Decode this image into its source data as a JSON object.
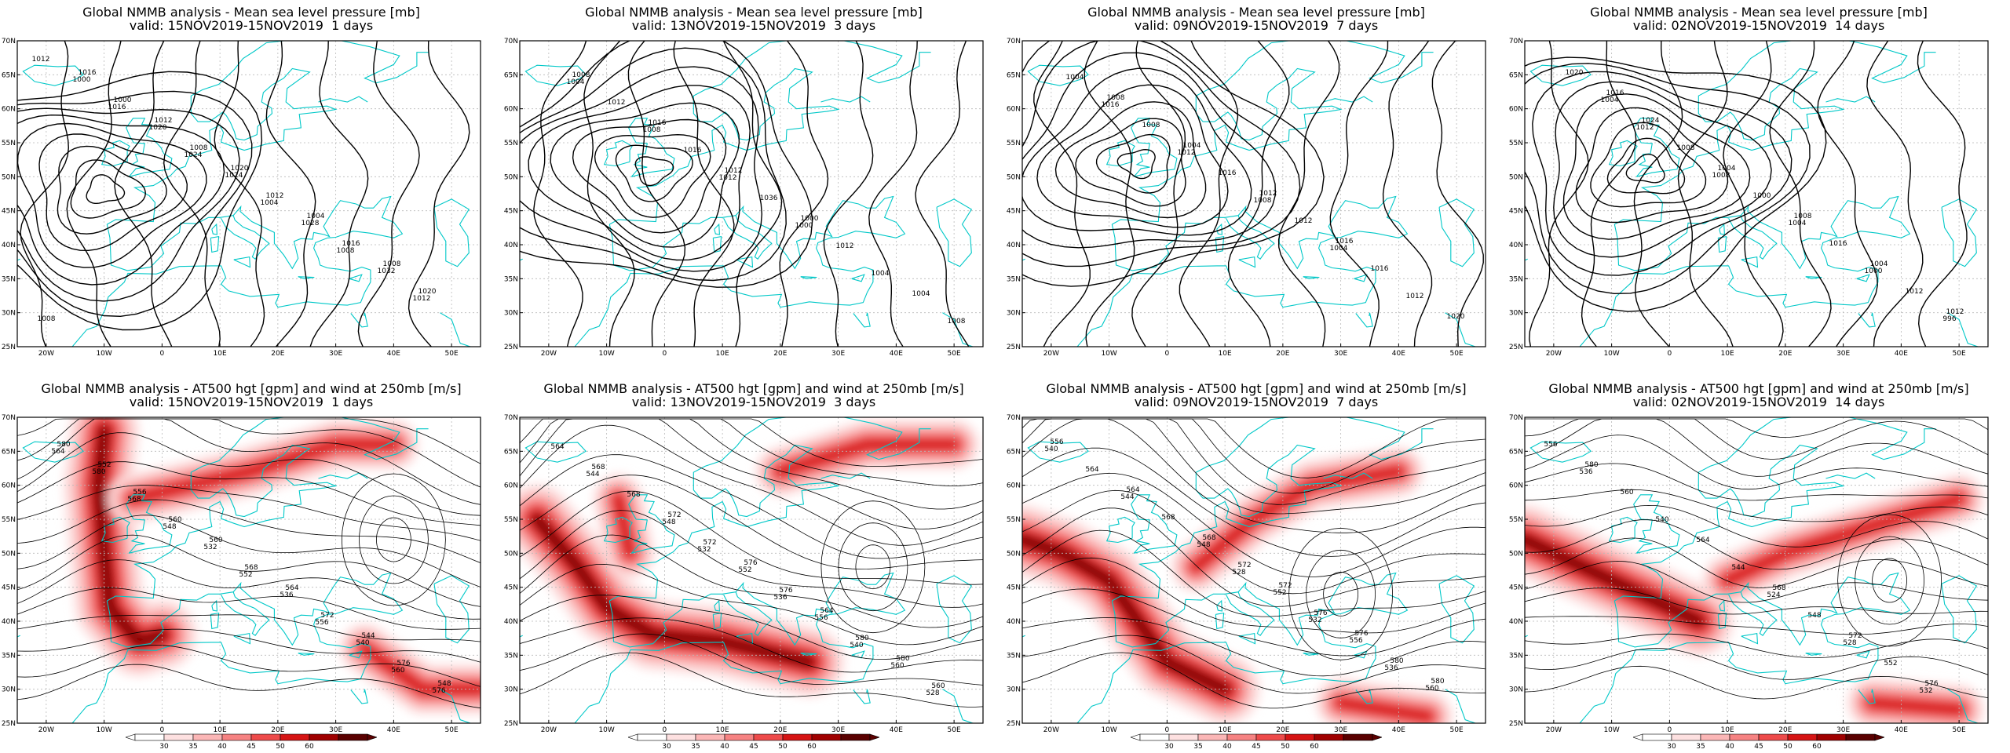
{
  "panels": [
    {
      "row": "mslp",
      "title1": "Global NMMB analysis - Mean sea level pressure [mb]",
      "title2": "valid: 15NOV2019-15NOV2019  1 days",
      "contour_labels": [
        "1012",
        "1016",
        "1024",
        "1004",
        "1008",
        "1012",
        "1000",
        "1020",
        "1024",
        "1028",
        "1032",
        "1008",
        "1000",
        "1008",
        "1012",
        "1016",
        "1020",
        "1016",
        "1012",
        "1020",
        "1004",
        "1008"
      ]
    },
    {
      "row": "mslp",
      "title1": "Global NMMB analysis - Mean sea level pressure [mb]",
      "title2": "valid: 13NOV2019-15NOV2019  3 days",
      "contour_labels": [
        "1004",
        "1008",
        "1012",
        "1000",
        "1004",
        "1008",
        "1012",
        "1016",
        "1036",
        "1012",
        "1004",
        "1008",
        "1016",
        "1012",
        "1000"
      ]
    },
    {
      "row": "mslp",
      "title1": "Global NMMB analysis - Mean sea level pressure [mb]",
      "title2": "valid: 09NOV2019-15NOV2019  7 days",
      "contour_labels": [
        "1016",
        "1012",
        "1008",
        "1004",
        "1012",
        "1004",
        "1008",
        "1016",
        "1012",
        "1016",
        "1020",
        "1008",
        "1004",
        "1012",
        "1016"
      ]
    },
    {
      "row": "mslp",
      "title1": "Global NMMB analysis - Mean sea level pressure [mb]",
      "title2": "valid: 02NOV2019-15NOV2019  14 days",
      "contour_labels": [
        "1012",
        "1008",
        "1004",
        "1000",
        "996",
        "1004",
        "1008",
        "1000",
        "1016",
        "1012",
        "1020",
        "1024",
        "1004",
        "1008",
        "1004",
        "1012",
        "1016"
      ]
    },
    {
      "row": "z500",
      "title1": "Global NMMB analysis - AT500 hgt [gpm] and wind at 250mb [m/s]",
      "title2": "valid: 15NOV2019-15NOV2019  1 days",
      "contour_labels": [
        "548",
        "552",
        "556",
        "560",
        "564",
        "568",
        "532",
        "536",
        "540",
        "576",
        "580",
        "560",
        "568",
        "572",
        "576",
        "580",
        "556",
        "560",
        "564",
        "544",
        "548",
        "552"
      ]
    },
    {
      "row": "z500",
      "title1": "Global NMMB analysis - AT500 hgt [gpm] and wind at 250mb [m/s]",
      "title2": "valid: 13NOV2019-15NOV2019  3 days",
      "contour_labels": [
        "532",
        "536",
        "540",
        "528",
        "544",
        "548",
        "552",
        "556",
        "560",
        "564",
        "568",
        "572",
        "576",
        "580",
        "560",
        "568",
        "572",
        "576",
        "564",
        "580"
      ]
    },
    {
      "row": "z500",
      "title1": "Global NMMB analysis - AT500 hgt [gpm] and wind at 250mb [m/s]",
      "title2": "valid: 09NOV2019-15NOV2019  7 days",
      "contour_labels": [
        "528",
        "532",
        "536",
        "540",
        "544",
        "548",
        "552",
        "556",
        "560",
        "564",
        "568",
        "572",
        "576",
        "580",
        "556",
        "564",
        "568",
        "572",
        "576",
        "580"
      ]
    },
    {
      "row": "z500",
      "title1": "Global NMMB analysis - AT500 hgt [gpm] and wind at 250mb [m/s]",
      "title2": "valid: 02NOV2019-15NOV2019  14 days",
      "contour_labels": [
        "524",
        "528",
        "532",
        "536",
        "540",
        "544",
        "548",
        "552",
        "556",
        "560",
        "564",
        "568",
        "572",
        "576",
        "580"
      ]
    }
  ],
  "map_axes": {
    "lat_ticks": [
      "70N",
      "65N",
      "60N",
      "55N",
      "50N",
      "45N",
      "40N",
      "35N",
      "30N",
      "25N"
    ],
    "lon_ticks": [
      "20W",
      "10W",
      "0",
      "10E",
      "20E",
      "30E",
      "40E",
      "50E"
    ]
  },
  "colorbar": {
    "labels": [
      "30",
      "35",
      "40",
      "45",
      "50",
      "60"
    ],
    "colors": [
      "#ffffff",
      "#fde0e0",
      "#fbb6b6",
      "#f68282",
      "#ee4a4a",
      "#d61414",
      "#a00000",
      "#5a0000"
    ]
  },
  "colors": {
    "coastline": "#00c8c8",
    "contour": "#000000",
    "grid": "#b9b9b9",
    "frame": "#000000"
  }
}
